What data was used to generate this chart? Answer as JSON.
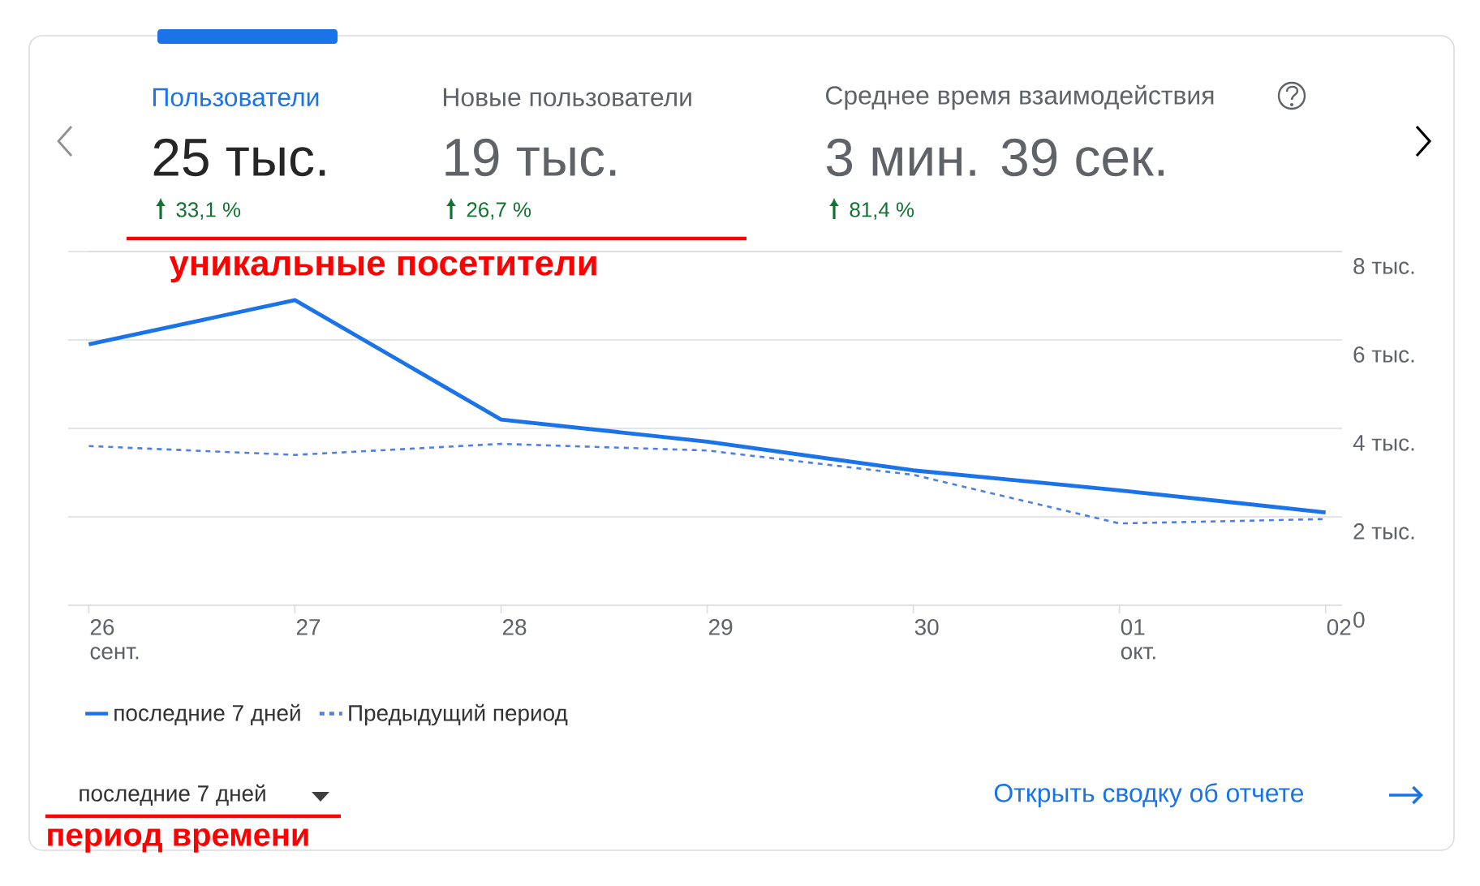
{
  "chart_data": {
    "type": "line",
    "categories": [
      "26 сент.",
      "27",
      "28",
      "29",
      "30",
      "01 окт.",
      "02"
    ],
    "series": [
      {
        "name": "последние 7 дней",
        "color": "#1a73e8",
        "line_style": "solid",
        "values": [
          5.9,
          6.9,
          4.2,
          3.7,
          3.05,
          2.6,
          2.1
        ]
      },
      {
        "name": "Предыдущий период",
        "color": "#4f7fe6",
        "line_style": "dashed",
        "values": [
          3.6,
          3.4,
          3.65,
          3.5,
          2.95,
          1.85,
          1.95
        ]
      }
    ],
    "ylim": [
      0,
      8
    ],
    "yticks": [
      0,
      {
        "value": 2,
        "label": "2 тыс."
      },
      {
        "value": 4,
        "label": "4 тыс."
      },
      {
        "value": 6,
        "label": "6 тыс."
      },
      {
        "value": 8,
        "label": "8 тыс."
      }
    ],
    "grid": "y",
    "legend": "bottom left",
    "annotations": [
      "Пользователи",
      "25 тыс.",
      "33,1 %",
      "Новые пользователи",
      "19 тыс.",
      "26,7 %",
      "Среднее время взаимодействия",
      "3 мин. 39 сек.",
      "81,4 %",
      "уникальные посетители",
      "последние 7 дней",
      "период времени",
      "Открыть сводку об отчете"
    ]
  }
}
